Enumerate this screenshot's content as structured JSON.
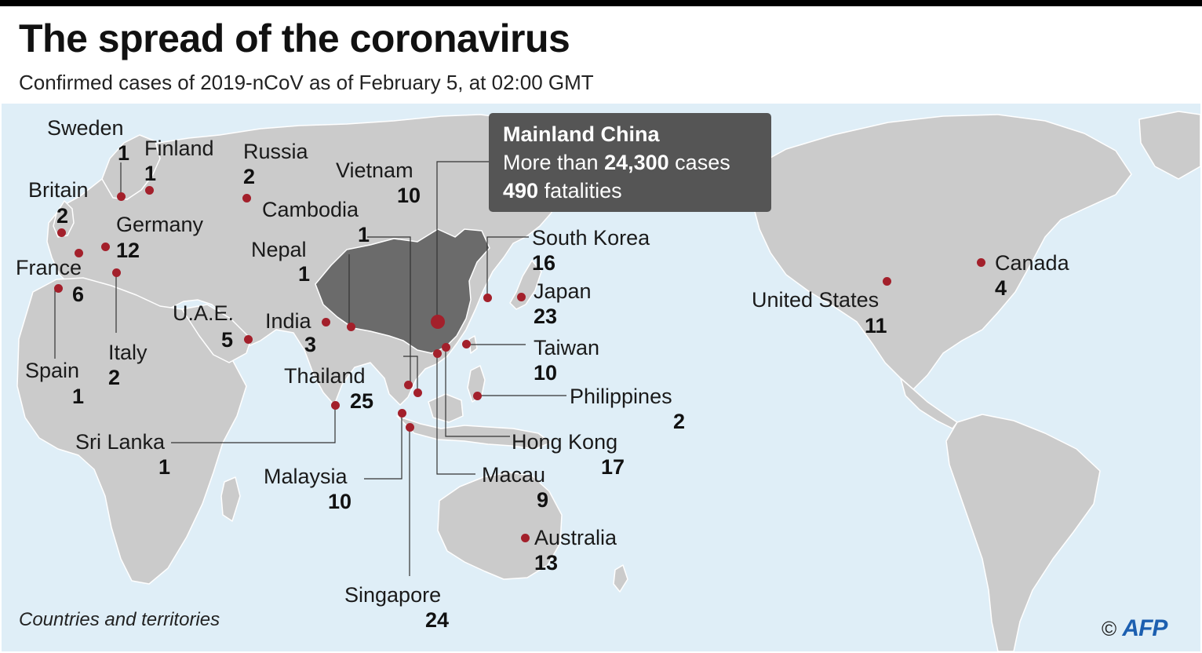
{
  "header": {
    "title": "The spread of the coronavirus",
    "subtitle": "Confirmed cases of 2019-nCoV as of February 5, at 02:00 GMT"
  },
  "colors": {
    "land": "#cbcbcb",
    "china": "#6b6b6b",
    "water": "#dfeef7",
    "dot": "#a3202b",
    "callout": "#555555"
  },
  "callout": {
    "title": "Mainland China",
    "cases_prefix": "More than ",
    "cases_value": "24,300",
    "cases_suffix": " cases",
    "fatalities_value": "490",
    "fatalities_suffix": " fatalities"
  },
  "countries": [
    {
      "name": "Sweden",
      "cases": "1"
    },
    {
      "name": "Finland",
      "cases": "1"
    },
    {
      "name": "Russia",
      "cases": "2"
    },
    {
      "name": "Britain",
      "cases": "2"
    },
    {
      "name": "Germany",
      "cases": "12"
    },
    {
      "name": "France",
      "cases": "6"
    },
    {
      "name": "Italy",
      "cases": "2"
    },
    {
      "name": "Spain",
      "cases": "1"
    },
    {
      "name": "Vietnam",
      "cases": "10"
    },
    {
      "name": "Cambodia",
      "cases": "1"
    },
    {
      "name": "Nepal",
      "cases": "1"
    },
    {
      "name": "U.A.E.",
      "cases": "5"
    },
    {
      "name": "India",
      "cases": "3"
    },
    {
      "name": "Thailand",
      "cases": "25"
    },
    {
      "name": "Sri Lanka",
      "cases": "1"
    },
    {
      "name": "Malaysia",
      "cases": "10"
    },
    {
      "name": "Singapore",
      "cases": "24"
    },
    {
      "name": "South Korea",
      "cases": "16"
    },
    {
      "name": "Japan",
      "cases": "23"
    },
    {
      "name": "Taiwan",
      "cases": "10"
    },
    {
      "name": "Philippines",
      "cases": "2"
    },
    {
      "name": "Hong Kong",
      "cases": "17"
    },
    {
      "name": "Macau",
      "cases": "9"
    },
    {
      "name": "Australia",
      "cases": "13"
    },
    {
      "name": "Canada",
      "cases": "4"
    },
    {
      "name": "United States",
      "cases": "11"
    }
  ],
  "footnote": "Countries and territories",
  "credit": {
    "symbol": "©",
    "agency": "AFP"
  }
}
